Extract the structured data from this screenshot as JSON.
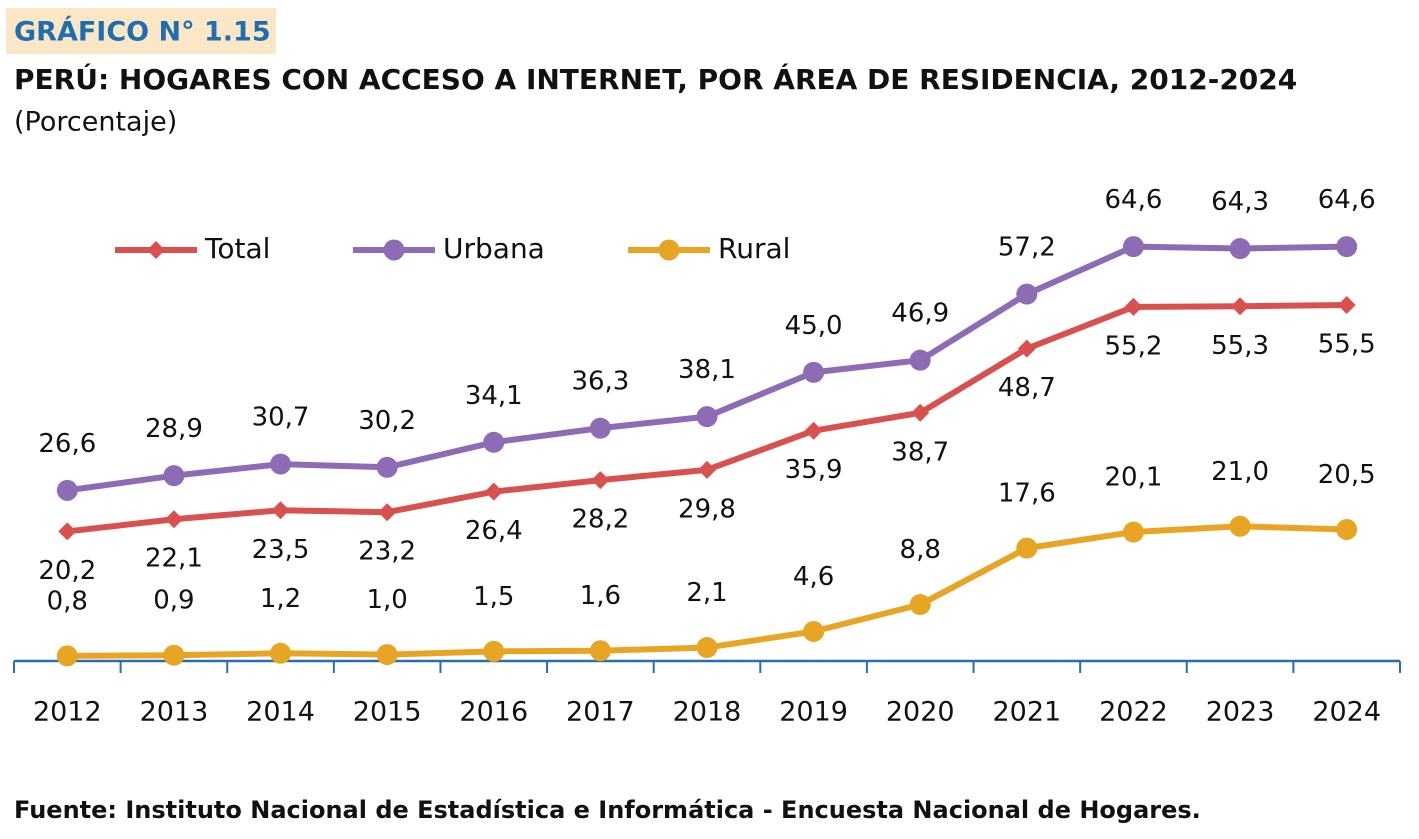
{
  "label": "GRÁFICO N° 1.15",
  "chart_data": {
    "type": "line",
    "title": "PERÚ: HOGARES CON ACCESO A INTERNET, POR  ÁREA DE RESIDENCIA, 2012-2024",
    "subtitle": "(Porcentaje)",
    "categories": [
      "2012",
      "2013",
      "2014",
      "2015",
      "2016",
      "2017",
      "2018",
      "2019",
      "2020",
      "2021",
      "2022",
      "2023",
      "2024"
    ],
    "series": [
      {
        "name": "Total",
        "color": "#d9514e",
        "marker": "diamond",
        "values": [
          20.2,
          22.1,
          23.5,
          23.2,
          26.4,
          28.2,
          29.8,
          35.9,
          38.7,
          48.7,
          55.2,
          55.3,
          55.5
        ],
        "value_labels": [
          "20,2",
          "22,1",
          "23,5",
          "23,2",
          "26,4",
          "28,2",
          "29,8",
          "35,9",
          "38,7",
          "48,7",
          "55,2",
          "55,3",
          "55,5"
        ]
      },
      {
        "name": "Urbana",
        "color": "#8e6bb5",
        "marker": "circle",
        "values": [
          26.6,
          28.9,
          30.7,
          30.2,
          34.1,
          36.3,
          38.1,
          45.0,
          46.9,
          57.2,
          64.6,
          64.3,
          64.6
        ],
        "value_labels": [
          "26,6",
          "28,9",
          "30,7",
          "30,2",
          "34,1",
          "36,3",
          "38,1",
          "45,0",
          "46,9",
          "57,2",
          "64,6",
          "64,3",
          "64,6"
        ]
      },
      {
        "name": "Rural",
        "color": "#e8a524",
        "marker": "circle",
        "values": [
          0.8,
          0.9,
          1.2,
          1.0,
          1.5,
          1.6,
          2.1,
          4.6,
          8.8,
          17.6,
          20.1,
          21.0,
          20.5
        ],
        "value_labels": [
          "0,8",
          "0,9",
          "1,2",
          "1,0",
          "1,5",
          "1,6",
          "2,1",
          "4,6",
          "8,8",
          "17,6",
          "20,1",
          "21,0",
          "20,5"
        ]
      }
    ],
    "ylim": [
      0,
      70
    ],
    "source": "Fuente: Instituto Nacional de Estadística e Informática - Encuesta Nacional de Hogares."
  }
}
